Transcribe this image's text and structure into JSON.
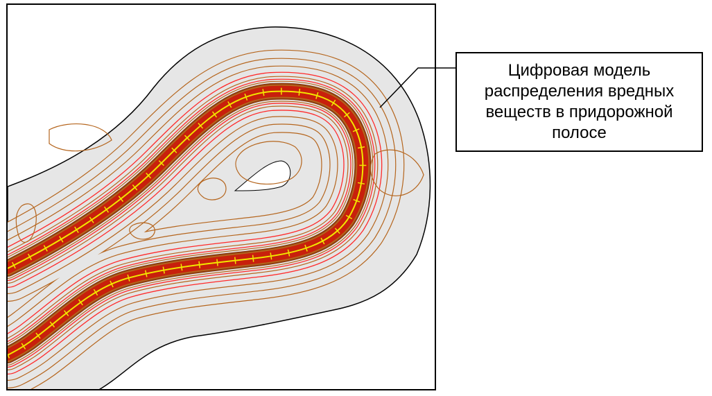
{
  "caption": {
    "text": "Цифровая модель\nраспределения вредных\nвеществ в придорожной\nполосе"
  },
  "colors": {
    "background_area": "#e6e6e6",
    "contour_outer": "#b5651d",
    "contour_mid": "#ff2a2a",
    "contour_inner": "#8b3a0f",
    "road_core": "#c8200c",
    "road_axis": "#f2e600",
    "frame": "#000000"
  }
}
